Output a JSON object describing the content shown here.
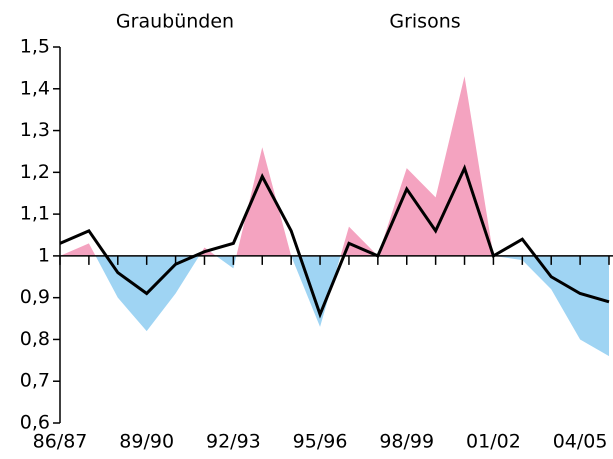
{
  "chart_data": {
    "type": "area-line",
    "title": "Graubünden",
    "subtitle": "Grisons",
    "categories": [
      "86/87",
      null,
      null,
      "89/90",
      null,
      null,
      "92/93",
      null,
      null,
      "95/96",
      null,
      null,
      "98/99",
      null,
      null,
      "01/02",
      null,
      null,
      "04/05",
      null
    ],
    "series": [
      {
        "type": "area",
        "color": "#f4a3c0",
        "color_below": "#9fd4f3",
        "values": [
          1.0,
          1.03,
          0.9,
          0.82,
          0.91,
          1.02,
          0.97,
          1.26,
          1.0,
          0.83,
          1.07,
          1.0,
          1.21,
          1.14,
          1.43,
          1.0,
          0.99,
          0.92,
          0.8,
          0.76
        ]
      },
      {
        "type": "line",
        "color": "#000000",
        "values": [
          1.03,
          1.06,
          0.96,
          0.91,
          0.98,
          1.01,
          1.03,
          1.19,
          1.06,
          0.86,
          1.03,
          1.0,
          1.16,
          1.06,
          1.21,
          1.0,
          1.04,
          0.95,
          0.91,
          0.89
        ]
      }
    ],
    "baseline": 1,
    "ylim": [
      0.6,
      1.5
    ],
    "yticks": [
      {
        "value": 0.6,
        "label": "0,6"
      },
      {
        "value": 0.7,
        "label": "0,7"
      },
      {
        "value": 0.8,
        "label": "0,8"
      },
      {
        "value": 0.9,
        "label": "0,9"
      },
      1,
      {
        "value": 1.1,
        "label": "1,1"
      },
      {
        "value": 1.2,
        "label": "1,2"
      },
      {
        "value": 1.3,
        "label": "1,3"
      },
      {
        "value": 1.4,
        "label": "1,4"
      },
      {
        "value": 1.5,
        "label": "1,5"
      }
    ]
  }
}
